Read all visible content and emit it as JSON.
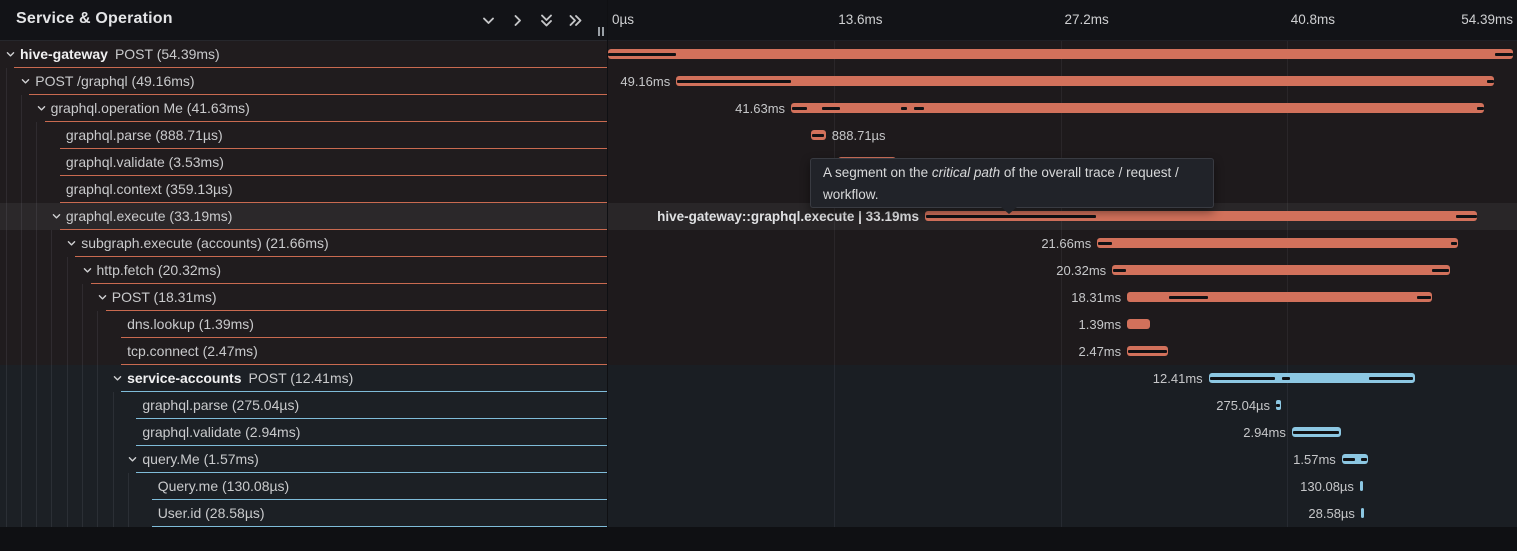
{
  "header": {
    "title": "Service & Operation",
    "icons": [
      {
        "name": "expand-one-button",
        "icon": "chevron-down-icon"
      },
      {
        "name": "collapse-one-button",
        "icon": "chevron-right-icon"
      },
      {
        "name": "expand-all-button",
        "icon": "double-chevron-down-icon"
      },
      {
        "name": "collapse-all-button",
        "icon": "double-chevron-right-icon"
      }
    ]
  },
  "axis": {
    "ticks": [
      "0µs",
      "13.6ms",
      "27.2ms",
      "40.8ms",
      "54.39ms"
    ]
  },
  "tooltip": {
    "prefix": "A segment on the ",
    "emphasis": "critical path",
    "suffix": " of the overall trace / request / workflow."
  },
  "colors": {
    "salmon_bar": "#d2715b",
    "blue_bar": "#8cc7e2",
    "salmon_border": "#c96a50",
    "blue_border": "#7fbcd9",
    "critical_path": "#101114"
  },
  "trace": {
    "total_ms": 54.39,
    "spans": [
      {
        "service": "hive-gateway",
        "show_service": true,
        "text": "POST (54.39ms)",
        "depth": 0,
        "expandable": true,
        "color": "salmon",
        "start": 0,
        "dur": 54.39,
        "crit": [
          [
            0,
            4.1
          ],
          [
            53.3,
            54.39
          ]
        ],
        "label": null,
        "side": "none",
        "hover": false
      },
      {
        "service": "hive-gateway",
        "show_service": false,
        "text": "POST /graphql (49.16ms)",
        "depth": 1,
        "expandable": true,
        "color": "salmon",
        "start": 4.1,
        "dur": 49.16,
        "crit": [
          [
            4.12,
            10.98
          ],
          [
            52.84,
            53.26
          ]
        ],
        "label": "49.16ms",
        "side": "left",
        "hover": false
      },
      {
        "service": "hive-gateway",
        "show_service": false,
        "text": "graphql.operation Me (41.63ms)",
        "depth": 2,
        "expandable": true,
        "color": "salmon",
        "start": 11.0,
        "dur": 41.63,
        "crit": [
          [
            11.04,
            11.98
          ],
          [
            12.84,
            13.94
          ],
          [
            17.59,
            17.95
          ],
          [
            18.39,
            18.99
          ],
          [
            52.2,
            52.63
          ]
        ],
        "label": "41.63ms",
        "side": "left",
        "hover": false
      },
      {
        "service": "hive-gateway",
        "show_service": false,
        "text": "graphql.parse (888.71µs)",
        "depth": 3,
        "expandable": false,
        "color": "salmon",
        "start": 12.2,
        "dur": 0.889,
        "crit": [
          [
            12.25,
            13.0
          ]
        ],
        "label": "888.71µs",
        "side": "right",
        "hover": false
      },
      {
        "service": "hive-gateway",
        "show_service": false,
        "text": "graphql.validate (3.53ms)",
        "depth": 3,
        "expandable": false,
        "color": "salmon",
        "start": 13.8,
        "dur": 3.53,
        "crit": [
          [
            13.9,
            17.25
          ]
        ],
        "label": "3.53ms",
        "side": "right",
        "hover": false
      },
      {
        "service": "hive-gateway",
        "show_service": false,
        "text": "graphql.context (359.13µs)",
        "depth": 3,
        "expandable": false,
        "color": "salmon",
        "start": 17.5,
        "dur": 0.359,
        "crit": [
          [
            17.52,
            17.84
          ]
        ],
        "label": "359.13µs",
        "side": "right",
        "hover": false
      },
      {
        "service": "hive-gateway",
        "show_service": false,
        "text": "graphql.execute (33.19ms)",
        "depth": 3,
        "expandable": true,
        "color": "salmon",
        "start": 19.05,
        "dur": 33.19,
        "crit": [
          [
            19.1,
            29.35
          ],
          [
            50.95,
            52.2
          ]
        ],
        "label": "hive-gateway::graphql.execute | 33.19ms",
        "side": "left",
        "hover": true
      },
      {
        "service": "hive-gateway",
        "show_service": false,
        "text": "subgraph.execute (accounts) (21.66ms)",
        "depth": 4,
        "expandable": true,
        "color": "salmon",
        "start": 29.4,
        "dur": 21.66,
        "crit": [
          [
            29.45,
            30.28
          ],
          [
            50.65,
            51.02
          ]
        ],
        "label": "21.66ms",
        "side": "left",
        "hover": false
      },
      {
        "service": "hive-gateway",
        "show_service": false,
        "text": "http.fetch (20.32ms)",
        "depth": 5,
        "expandable": true,
        "color": "salmon",
        "start": 30.3,
        "dur": 20.32,
        "crit": [
          [
            30.35,
            31.15
          ],
          [
            49.55,
            50.55
          ]
        ],
        "label": "20.32ms",
        "side": "left",
        "hover": false
      },
      {
        "service": "hive-gateway",
        "show_service": false,
        "text": "POST (18.31ms)",
        "depth": 6,
        "expandable": true,
        "color": "salmon",
        "start": 31.2,
        "dur": 18.31,
        "crit": [
          [
            33.7,
            36.05
          ],
          [
            48.6,
            49.45
          ]
        ],
        "label": "18.31ms",
        "side": "left",
        "hover": false
      },
      {
        "service": "hive-gateway",
        "show_service": false,
        "text": "dns.lookup (1.39ms)",
        "depth": 7,
        "expandable": false,
        "color": "salmon",
        "start": 31.2,
        "dur": 1.39,
        "crit": [],
        "label": "1.39ms",
        "side": "left",
        "hover": false
      },
      {
        "service": "hive-gateway",
        "show_service": false,
        "text": "tcp.connect (2.47ms)",
        "depth": 7,
        "expandable": false,
        "color": "salmon",
        "start": 31.2,
        "dur": 2.47,
        "crit": [
          [
            31.27,
            33.6
          ]
        ],
        "label": "2.47ms",
        "side": "left",
        "hover": false
      },
      {
        "service": "service-accounts",
        "show_service": true,
        "text": "POST (12.41ms)",
        "depth": 7,
        "expandable": true,
        "color": "blue",
        "start": 36.1,
        "dur": 12.41,
        "crit": [
          [
            36.18,
            40.1
          ],
          [
            40.5,
            41.0
          ],
          [
            45.75,
            48.4
          ]
        ],
        "label": "12.41ms",
        "side": "left",
        "hover": false
      },
      {
        "service": "service-accounts",
        "show_service": false,
        "text": "graphql.parse (275.04µs)",
        "depth": 8,
        "expandable": false,
        "color": "blue",
        "start": 40.15,
        "dur": 0.275,
        "crit": [
          [
            40.17,
            40.41
          ]
        ],
        "label": "275.04µs",
        "side": "left",
        "hover": false
      },
      {
        "service": "service-accounts",
        "show_service": false,
        "text": "graphql.validate (2.94ms)",
        "depth": 8,
        "expandable": false,
        "color": "blue",
        "start": 41.1,
        "dur": 2.94,
        "crit": [
          [
            41.17,
            43.95
          ]
        ],
        "label": "2.94ms",
        "side": "left",
        "hover": false
      },
      {
        "service": "service-accounts",
        "show_service": false,
        "text": "query.Me (1.57ms)",
        "depth": 8,
        "expandable": true,
        "color": "blue",
        "start": 44.1,
        "dur": 1.57,
        "crit": [
          [
            44.17,
            44.92
          ],
          [
            45.28,
            45.6
          ]
        ],
        "label": "1.57ms",
        "side": "left",
        "hover": false
      },
      {
        "service": "service-accounts",
        "show_service": false,
        "text": "Query.me (130.08µs)",
        "depth": 9,
        "expandable": false,
        "color": "blue",
        "start": 45.19,
        "dur": 0.13,
        "crit": [],
        "label": "130.08µs",
        "side": "left",
        "hover": false
      },
      {
        "service": "service-accounts",
        "show_service": false,
        "text": "User.id (28.58µs)",
        "depth": 9,
        "expandable": false,
        "color": "blue",
        "start": 45.25,
        "dur": 0.029,
        "crit": [],
        "label": "28.58µs",
        "side": "left",
        "hover": false
      }
    ]
  }
}
